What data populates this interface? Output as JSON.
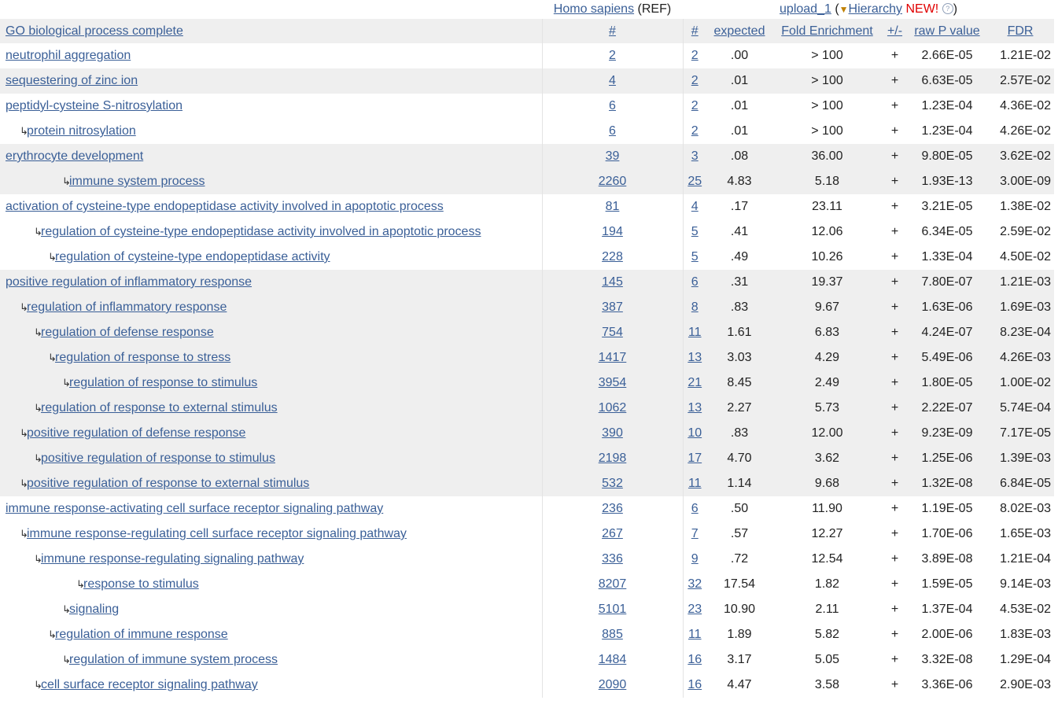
{
  "header": {
    "ref_species": "Homo sapiens",
    "ref_suffix": "(REF)",
    "upload": "upload_1",
    "open_paren": "(",
    "triangle": "▼",
    "hierarchy": "Hierarchy",
    "new_badge": "NEW!",
    "help": "?",
    "close_paren": ")"
  },
  "columns": {
    "term": "GO biological process complete",
    "ref_count": "#",
    "count": "#",
    "expected": "expected",
    "fold": "Fold Enrichment",
    "dir": "+/-",
    "raw_p": "raw P value",
    "fdr": "FDR"
  },
  "rows": [
    {
      "term": "neutrophil aggregation",
      "indent": 0,
      "ref": "2",
      "count": "2",
      "expected": ".00",
      "fold": "> 100",
      "dir": "+",
      "p": "2.66E-05",
      "fdr": "1.21E-02",
      "group": 0
    },
    {
      "term": "sequestering of zinc ion",
      "indent": 0,
      "ref": "4",
      "count": "2",
      "expected": ".01",
      "fold": "> 100",
      "dir": "+",
      "p": "6.63E-05",
      "fdr": "2.57E-02",
      "group": 1
    },
    {
      "term": "peptidyl-cysteine S-nitrosylation",
      "indent": 0,
      "ref": "6",
      "count": "2",
      "expected": ".01",
      "fold": "> 100",
      "dir": "+",
      "p": "1.23E-04",
      "fdr": "4.36E-02",
      "group": 0
    },
    {
      "term": "protein nitrosylation",
      "indent": 1,
      "ref": "6",
      "count": "2",
      "expected": ".01",
      "fold": "> 100",
      "dir": "+",
      "p": "1.23E-04",
      "fdr": "4.26E-02",
      "group": 0
    },
    {
      "term": "erythrocyte development",
      "indent": 0,
      "ref": "39",
      "count": "3",
      "expected": ".08",
      "fold": "36.00",
      "dir": "+",
      "p": "9.80E-05",
      "fdr": "3.62E-02",
      "group": 1
    },
    {
      "term": "immune system process",
      "indent": 4,
      "ref": "2260",
      "count": "25",
      "expected": "4.83",
      "fold": "5.18",
      "dir": "+",
      "p": "1.93E-13",
      "fdr": "3.00E-09",
      "group": 1
    },
    {
      "term": "activation of cysteine-type endopeptidase activity involved in apoptotic process",
      "indent": 0,
      "ref": "81",
      "count": "4",
      "expected": ".17",
      "fold": "23.11",
      "dir": "+",
      "p": "3.21E-05",
      "fdr": "1.38E-02",
      "group": 0
    },
    {
      "term": "regulation of cysteine-type endopeptidase activity involved in apoptotic process",
      "indent": 2,
      "ref": "194",
      "count": "5",
      "expected": ".41",
      "fold": "12.06",
      "dir": "+",
      "p": "6.34E-05",
      "fdr": "2.59E-02",
      "group": 0
    },
    {
      "term": "regulation of cysteine-type endopeptidase activity",
      "indent": 3,
      "ref": "228",
      "count": "5",
      "expected": ".49",
      "fold": "10.26",
      "dir": "+",
      "p": "1.33E-04",
      "fdr": "4.50E-02",
      "group": 0
    },
    {
      "term": "positive regulation of inflammatory response",
      "indent": 0,
      "ref": "145",
      "count": "6",
      "expected": ".31",
      "fold": "19.37",
      "dir": "+",
      "p": "7.80E-07",
      "fdr": "1.21E-03",
      "group": 1
    },
    {
      "term": "regulation of inflammatory response",
      "indent": 1,
      "ref": "387",
      "count": "8",
      "expected": ".83",
      "fold": "9.67",
      "dir": "+",
      "p": "1.63E-06",
      "fdr": "1.69E-03",
      "group": 1
    },
    {
      "term": "regulation of defense response",
      "indent": 2,
      "ref": "754",
      "count": "11",
      "expected": "1.61",
      "fold": "6.83",
      "dir": "+",
      "p": "4.24E-07",
      "fdr": "8.23E-04",
      "group": 1
    },
    {
      "term": "regulation of response to stress",
      "indent": 3,
      "ref": "1417",
      "count": "13",
      "expected": "3.03",
      "fold": "4.29",
      "dir": "+",
      "p": "5.49E-06",
      "fdr": "4.26E-03",
      "group": 1
    },
    {
      "term": "regulation of response to stimulus",
      "indent": 4,
      "ref": "3954",
      "count": "21",
      "expected": "8.45",
      "fold": "2.49",
      "dir": "+",
      "p": "1.80E-05",
      "fdr": "1.00E-02",
      "group": 1
    },
    {
      "term": "regulation of response to external stimulus",
      "indent": 2,
      "ref": "1062",
      "count": "13",
      "expected": "2.27",
      "fold": "5.73",
      "dir": "+",
      "p": "2.22E-07",
      "fdr": "5.74E-04",
      "group": 1
    },
    {
      "term": "positive regulation of defense response",
      "indent": 1,
      "ref": "390",
      "count": "10",
      "expected": ".83",
      "fold": "12.00",
      "dir": "+",
      "p": "9.23E-09",
      "fdr": "7.17E-05",
      "group": 1
    },
    {
      "term": "positive regulation of response to stimulus",
      "indent": 2,
      "ref": "2198",
      "count": "17",
      "expected": "4.70",
      "fold": "3.62",
      "dir": "+",
      "p": "1.25E-06",
      "fdr": "1.39E-03",
      "group": 1
    },
    {
      "term": "positive regulation of response to external stimulus",
      "indent": 1,
      "ref": "532",
      "count": "11",
      "expected": "1.14",
      "fold": "9.68",
      "dir": "+",
      "p": "1.32E-08",
      "fdr": "6.84E-05",
      "group": 1
    },
    {
      "term": "immune response-activating cell surface receptor signaling pathway",
      "indent": 0,
      "ref": "236",
      "count": "6",
      "expected": ".50",
      "fold": "11.90",
      "dir": "+",
      "p": "1.19E-05",
      "fdr": "8.02E-03",
      "group": 0
    },
    {
      "term": "immune response-regulating cell surface receptor signaling pathway",
      "indent": 1,
      "ref": "267",
      "count": "7",
      "expected": ".57",
      "fold": "12.27",
      "dir": "+",
      "p": "1.70E-06",
      "fdr": "1.65E-03",
      "group": 0
    },
    {
      "term": "immune response-regulating signaling pathway",
      "indent": 2,
      "ref": "336",
      "count": "9",
      "expected": ".72",
      "fold": "12.54",
      "dir": "+",
      "p": "3.89E-08",
      "fdr": "1.21E-04",
      "group": 0
    },
    {
      "term": "response to stimulus",
      "indent": 5,
      "ref": "8207",
      "count": "32",
      "expected": "17.54",
      "fold": "1.82",
      "dir": "+",
      "p": "1.59E-05",
      "fdr": "9.14E-03",
      "group": 0
    },
    {
      "term": "signaling",
      "indent": 4,
      "ref": "5101",
      "count": "23",
      "expected": "10.90",
      "fold": "2.11",
      "dir": "+",
      "p": "1.37E-04",
      "fdr": "4.53E-02",
      "group": 0
    },
    {
      "term": "regulation of immune response",
      "indent": 3,
      "ref": "885",
      "count": "11",
      "expected": "1.89",
      "fold": "5.82",
      "dir": "+",
      "p": "2.00E-06",
      "fdr": "1.83E-03",
      "group": 0
    },
    {
      "term": "regulation of immune system process",
      "indent": 4,
      "ref": "1484",
      "count": "16",
      "expected": "3.17",
      "fold": "5.05",
      "dir": "+",
      "p": "3.32E-08",
      "fdr": "1.29E-04",
      "group": 0
    },
    {
      "term": "cell surface receptor signaling pathway",
      "indent": 2,
      "ref": "2090",
      "count": "16",
      "expected": "4.47",
      "fold": "3.58",
      "dir": "+",
      "p": "3.36E-06",
      "fdr": "2.90E-03",
      "group": 0
    }
  ],
  "hierarchy_arrow": "↳"
}
